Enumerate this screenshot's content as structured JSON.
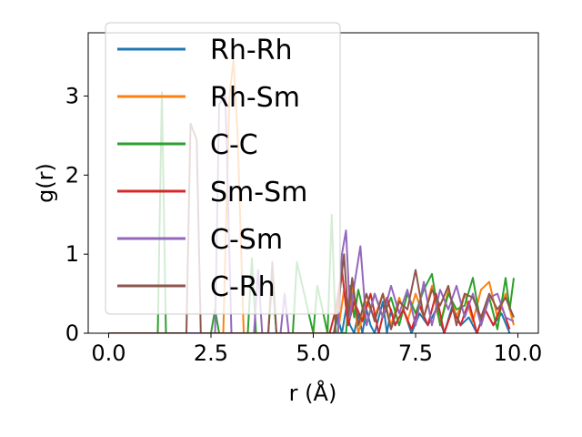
{
  "chart_data": {
    "type": "line",
    "xlabel": "r (Å)",
    "ylabel": "g(r)",
    "xlim": [
      -0.5,
      10.5
    ],
    "ylim": [
      0,
      3.8
    ],
    "xticks": [
      0.0,
      2.5,
      5.0,
      7.5,
      10.0
    ],
    "xtick_labels": [
      "0.0",
      "2.5",
      "5.0",
      "7.5",
      "10.0"
    ],
    "yticks": [
      0,
      1,
      2,
      3
    ],
    "ytick_labels": [
      "0",
      "1",
      "2",
      "3"
    ],
    "grid": false,
    "legend_position": "top-left",
    "series": [
      {
        "name": "Rh-Rh",
        "color": "#1f77b4",
        "x": [
          0.0,
          5.5,
          5.6,
          5.7,
          5.8,
          5.9,
          6.0,
          6.1,
          6.2,
          6.3,
          6.4,
          6.5,
          6.6,
          6.7,
          6.8,
          6.9,
          7.0,
          7.2,
          7.4,
          7.6,
          7.8,
          8.0,
          8.2,
          8.4,
          8.6,
          8.8,
          9.0,
          9.2,
          9.4,
          9.6,
          9.8
        ],
        "y": [
          0.0,
          0.0,
          0.2,
          0.0,
          0.3,
          0.1,
          0.0,
          0.25,
          0.0,
          0.3,
          0.1,
          0.0,
          0.2,
          0.4,
          0.0,
          0.3,
          0.1,
          0.3,
          0.0,
          0.25,
          0.1,
          0.3,
          0.0,
          0.35,
          0.1,
          0.2,
          0.0,
          0.3,
          0.1,
          0.25,
          0.0
        ]
      },
      {
        "name": "Rh-Sm",
        "color": "#ff7f0e",
        "x": [
          0.0,
          2.8,
          2.95,
          3.05,
          3.15,
          3.3,
          5.6,
          5.75,
          5.85,
          5.95,
          6.1,
          6.3,
          6.5,
          6.7,
          6.9,
          7.1,
          7.3,
          7.5,
          7.7,
          7.9,
          8.1,
          8.3,
          8.5,
          8.7,
          8.9,
          9.1,
          9.3,
          9.5,
          9.7,
          9.9
        ],
        "y": [
          0.0,
          0.0,
          3.0,
          3.45,
          2.5,
          0.0,
          0.0,
          0.55,
          0.1,
          0.6,
          0.0,
          0.4,
          0.2,
          0.5,
          0.1,
          0.45,
          0.15,
          0.5,
          0.2,
          0.6,
          0.1,
          0.55,
          0.2,
          0.5,
          0.15,
          0.55,
          0.65,
          0.2,
          0.5,
          0.1
        ]
      },
      {
        "name": "C-C",
        "color": "#2ca02c",
        "x": [
          0.0,
          1.2,
          1.3,
          1.4,
          2.5,
          2.6,
          2.7,
          3.4,
          3.5,
          3.6,
          3.9,
          4.0,
          4.1,
          4.5,
          4.6,
          5.0,
          5.1,
          5.35,
          5.45,
          5.55,
          5.8,
          5.9,
          6.0,
          6.1,
          6.3,
          6.5,
          6.7,
          6.9,
          7.1,
          7.3,
          7.5,
          7.7,
          7.9,
          8.1,
          8.3,
          8.5,
          8.7,
          8.9,
          9.1,
          9.3,
          9.5,
          9.7,
          9.8,
          9.9
        ],
        "y": [
          0.0,
          0.0,
          3.05,
          0.0,
          0.0,
          0.3,
          0.0,
          0.0,
          0.95,
          0.0,
          0.0,
          0.7,
          0.0,
          0.0,
          0.9,
          0.0,
          0.6,
          0.0,
          1.5,
          0.0,
          0.0,
          0.6,
          0.2,
          0.55,
          0.1,
          0.5,
          0.2,
          0.45,
          0.1,
          0.5,
          0.25,
          0.55,
          0.75,
          0.1,
          0.5,
          0.3,
          0.35,
          0.7,
          0.1,
          0.45,
          0.05,
          0.7,
          0.3,
          0.7
        ]
      },
      {
        "name": "Sm-Sm",
        "color": "#d62728",
        "x": [
          0.0,
          5.4,
          5.55,
          5.7,
          5.85,
          6.0,
          6.2,
          6.4,
          6.6,
          6.8,
          7.0,
          7.2,
          7.4,
          7.6,
          7.8,
          8.0,
          8.2,
          8.4,
          8.6,
          8.8,
          9.0,
          9.2,
          9.4,
          9.6,
          9.8
        ],
        "y": [
          0.0,
          0.0,
          0.3,
          0.8,
          0.1,
          0.4,
          0.15,
          0.5,
          0.0,
          0.45,
          0.1,
          0.3,
          0.05,
          0.35,
          0.1,
          0.5,
          0.0,
          0.3,
          0.1,
          0.4,
          0.0,
          0.3,
          0.1,
          0.35,
          0.05
        ]
      },
      {
        "name": "C-Sm",
        "color": "#9467bd",
        "x": [
          0.0,
          2.5,
          2.6,
          2.7,
          2.85,
          3.0,
          3.1,
          3.55,
          3.65,
          3.75,
          4.2,
          4.3,
          4.4,
          5.6,
          5.7,
          5.8,
          5.9,
          6.0,
          6.15,
          6.3,
          6.5,
          6.7,
          6.9,
          7.1,
          7.3,
          7.5,
          7.7,
          7.9,
          8.1,
          8.3,
          8.5,
          8.7,
          8.9,
          9.1,
          9.3,
          9.5,
          9.7,
          9.9
        ],
        "y": [
          0.0,
          0.0,
          0.0,
          2.9,
          3.0,
          0.0,
          0.0,
          0.0,
          0.8,
          0.0,
          0.0,
          0.5,
          0.0,
          0.0,
          1.0,
          1.3,
          0.2,
          0.6,
          1.1,
          0.1,
          0.5,
          0.2,
          0.6,
          0.25,
          0.55,
          0.1,
          0.65,
          0.1,
          0.55,
          0.3,
          0.6,
          0.2,
          0.5,
          0.1,
          0.45,
          0.5,
          0.2,
          0.15
        ]
      },
      {
        "name": "C-Rh",
        "color": "#8c564b",
        "x": [
          0.0,
          1.9,
          2.0,
          2.15,
          2.25,
          3.9,
          4.0,
          4.1,
          5.5,
          5.6,
          5.75,
          5.85,
          5.95,
          6.1,
          6.3,
          6.5,
          6.7,
          6.9,
          7.1,
          7.3,
          7.5,
          7.7,
          7.9,
          8.1,
          8.3,
          8.5,
          8.7,
          8.9,
          9.1,
          9.3,
          9.5,
          9.7,
          9.9
        ],
        "y": [
          0.0,
          0.0,
          2.65,
          2.45,
          0.0,
          0.0,
          0.9,
          0.0,
          0.0,
          0.3,
          1.0,
          0.2,
          0.7,
          0.1,
          0.5,
          0.15,
          0.5,
          0.05,
          0.4,
          0.3,
          0.8,
          0.2,
          0.55,
          0.35,
          0.6,
          0.1,
          0.5,
          0.45,
          0.2,
          0.5,
          0.3,
          0.45,
          0.2
        ]
      }
    ]
  }
}
